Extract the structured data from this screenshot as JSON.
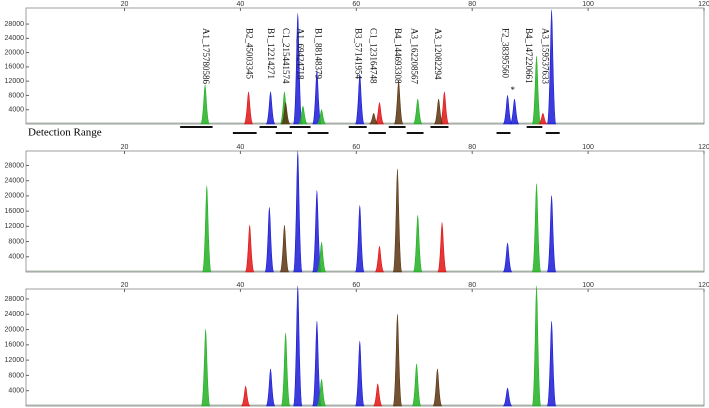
{
  "chart_data": [
    {
      "type": "peak",
      "xlim": [
        3,
        120
      ],
      "ylim": [
        0,
        32500
      ],
      "xticks": [
        20,
        40,
        60,
        80,
        100,
        120
      ],
      "yticks": [
        4000,
        8000,
        12000,
        16000,
        20000,
        24000,
        28000
      ],
      "series": [
        {
          "color": "#1a1ad6",
          "x": [
            45.2,
            49.9,
            53.2,
            60.6,
            86.1,
            87.3,
            93.7
          ],
          "values": [
            9000,
            31000,
            15000,
            14000,
            8000,
            7000,
            32000
          ]
        },
        {
          "color": "#22b022",
          "x": [
            33.9,
            47.6,
            50.8,
            54.0,
            70.6,
            91.1
          ],
          "values": [
            11000,
            9000,
            5000,
            4000,
            7000,
            19000
          ]
        },
        {
          "color": "#e01414",
          "x": [
            41.4,
            64.0,
            75.2,
            92.2
          ],
          "values": [
            9000,
            6000,
            9000,
            3000
          ]
        },
        {
          "color": "#5a3410",
          "x": [
            47.8,
            63.0,
            67.3,
            74.2
          ],
          "values": [
            6000,
            3000,
            12000,
            7000
          ]
        }
      ],
      "annotations": [
        {
          "text": "A1_175780586",
          "x": 33.9
        },
        {
          "text": "B2_45003345",
          "x": 41.4
        },
        {
          "text": "B1_12214271",
          "x": 45.1
        },
        {
          "text": "C1_215441574",
          "x": 47.7
        },
        {
          "text": "A1_69424718",
          "x": 50.2
        },
        {
          "text": "B1_88148379",
          "x": 53.3
        },
        {
          "text": "B3_57141954",
          "x": 60.2
        },
        {
          "text": "C1_123164748",
          "x": 62.8
        },
        {
          "text": "B4_144693308",
          "x": 67.0
        },
        {
          "text": "A3_162208567",
          "x": 69.9
        },
        {
          "text": "A3_12082294",
          "x": 73.9
        },
        {
          "text": "F2_38395560",
          "x": 85.6
        },
        {
          "text": "B4_147220661",
          "x": 89.6
        },
        {
          "text": "A3_159537633",
          "x": 92.5
        }
      ],
      "marker": {
        "text": "*",
        "x": 87.0
      },
      "range_label": "Detection Range",
      "ranges": [
        [
          29.6,
          35.2
        ],
        [
          38.7,
          42.8
        ],
        [
          43.3,
          46.3
        ],
        [
          46.1,
          48.9
        ],
        [
          48.5,
          52.1
        ],
        [
          51.6,
          55.2
        ],
        [
          58.7,
          61.8
        ],
        [
          62.1,
          65.1
        ],
        [
          65.6,
          68.5
        ],
        [
          68.7,
          71.6
        ],
        [
          72.8,
          75.9
        ],
        [
          84.2,
          86.6
        ],
        [
          89.4,
          92.1
        ],
        [
          92.7,
          95.1
        ]
      ]
    },
    {
      "type": "peak",
      "xlim": [
        3,
        120
      ],
      "ylim": [
        0,
        31800
      ],
      "xticks": [
        20,
        40,
        60,
        80,
        100,
        120
      ],
      "yticks": [
        4000,
        8000,
        12000,
        16000,
        20000,
        24000,
        28000
      ],
      "series": [
        {
          "color": "#1a1ad6",
          "x": [
            45.0,
            49.9,
            53.2,
            60.6,
            86.1,
            93.7
          ],
          "values": [
            17000,
            31800,
            21400,
            17500,
            7600,
            20100
          ]
        },
        {
          "color": "#22b022",
          "x": [
            34.2,
            54.0,
            70.6,
            91.1
          ],
          "values": [
            22700,
            7800,
            14900,
            23200
          ]
        },
        {
          "color": "#e01414",
          "x": [
            41.6,
            64.0,
            74.8
          ],
          "values": [
            12300,
            6800,
            13000
          ]
        },
        {
          "color": "#5a3410",
          "x": [
            47.6,
            67.1
          ],
          "values": [
            12300,
            27100
          ]
        }
      ]
    },
    {
      "type": "peak",
      "xlim": [
        3,
        120
      ],
      "ylim": [
        0,
        30600
      ],
      "xticks": [
        20,
        40,
        60,
        80,
        100,
        120
      ],
      "yticks": [
        4000,
        8000,
        12000,
        16000,
        20000,
        24000,
        28000
      ],
      "series": [
        {
          "color": "#1a1ad6",
          "x": [
            45.2,
            49.9,
            53.2,
            60.6,
            86.1,
            93.7
          ],
          "values": [
            9700,
            31400,
            22200,
            17000,
            4700,
            22200
          ]
        },
        {
          "color": "#22b022",
          "x": [
            34.0,
            47.8,
            54.0,
            70.4,
            91.1
          ],
          "values": [
            20100,
            19100,
            7000,
            11000,
            31400
          ]
        },
        {
          "color": "#e01414",
          "x": [
            40.9,
            63.7
          ],
          "values": [
            5200,
            5800
          ]
        },
        {
          "color": "#5a3410",
          "x": [
            67.1,
            74.0
          ],
          "values": [
            24000,
            9700
          ]
        }
      ]
    }
  ]
}
